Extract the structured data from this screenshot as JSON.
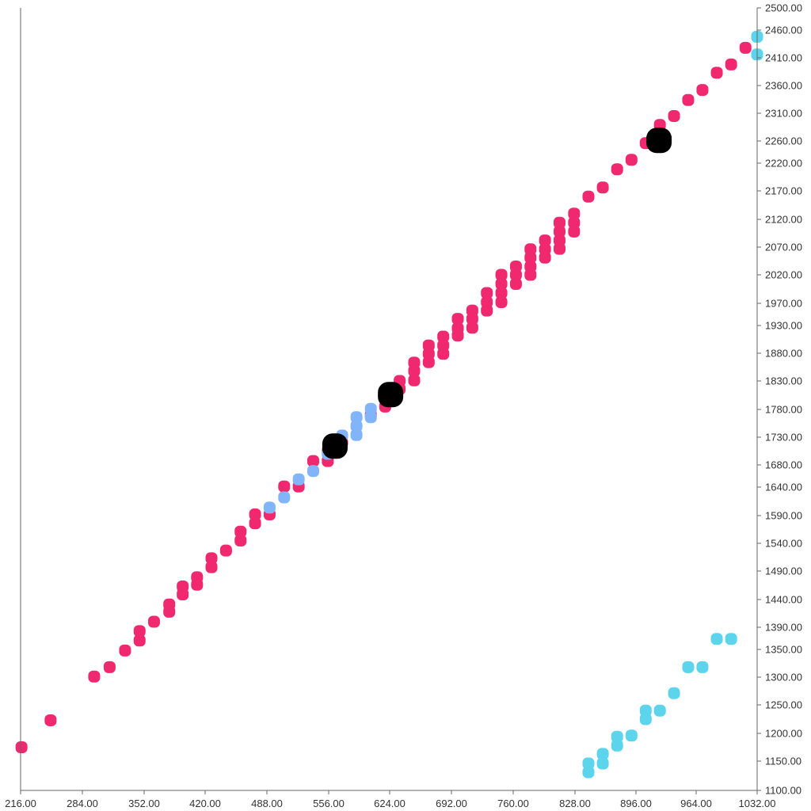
{
  "chart_data": {
    "type": "scatter",
    "title": "",
    "xlabel": "",
    "ylabel": "",
    "xlim": [
      216,
      1032
    ],
    "ylim": [
      1100,
      2500
    ],
    "x_ticks": [
      "216.00",
      "284.00",
      "352.00",
      "420.00",
      "488.00",
      "556.00",
      "624.00",
      "692.00",
      "760.00",
      "828.00",
      "896.00",
      "964.00",
      "1032.00"
    ],
    "y_ticks": [
      "2500.00",
      "2460.00",
      "2410.00",
      "2360.00",
      "2310.00",
      "2260.00",
      "2220.00",
      "2170.00",
      "2120.00",
      "2070.00",
      "2020.00",
      "1970.00",
      "1930.00",
      "1880.00",
      "1830.00",
      "1780.00",
      "1730.00",
      "1680.00",
      "1640.00",
      "1590.00",
      "1540.00",
      "1490.00",
      "1440.00",
      "1390.00",
      "1350.00",
      "1300.00",
      "1250.00",
      "1200.00",
      "1150.00",
      "1100.00"
    ],
    "y_axis_side": "right",
    "grid": false,
    "legend": "none",
    "series": [
      {
        "color": "#f0286e",
        "points": [
          [
            217,
            1175
          ],
          [
            249,
            1223
          ],
          [
            297,
            1301
          ],
          [
            314,
            1318
          ],
          [
            331,
            1348
          ],
          [
            347,
            1366
          ],
          [
            347,
            1383
          ],
          [
            363,
            1400
          ],
          [
            380,
            1418
          ],
          [
            380,
            1431
          ],
          [
            395,
            1449
          ],
          [
            395,
            1463
          ],
          [
            411,
            1466
          ],
          [
            411,
            1479
          ],
          [
            427,
            1497
          ],
          [
            427,
            1513
          ],
          [
            443,
            1527
          ],
          [
            459,
            1545
          ],
          [
            459,
            1561
          ],
          [
            475,
            1576
          ],
          [
            475,
            1592
          ],
          [
            491,
            1592
          ],
          [
            507,
            1641
          ],
          [
            523,
            1641
          ],
          [
            539,
            1687
          ],
          [
            555,
            1687
          ],
          [
            555,
            1705
          ],
          [
            571,
            1720
          ],
          [
            603,
            1770
          ],
          [
            619,
            1785
          ],
          [
            635,
            1816
          ],
          [
            635,
            1830
          ],
          [
            651,
            1831
          ],
          [
            651,
            1848
          ],
          [
            651,
            1863
          ],
          [
            667,
            1864
          ],
          [
            667,
            1879
          ],
          [
            667,
            1894
          ],
          [
            683,
            1879
          ],
          [
            683,
            1894
          ],
          [
            683,
            1910
          ],
          [
            699,
            1912
          ],
          [
            699,
            1925
          ],
          [
            699,
            1942
          ],
          [
            715,
            1926
          ],
          [
            715,
            1942
          ],
          [
            715,
            1957
          ],
          [
            731,
            1957
          ],
          [
            731,
            1972
          ],
          [
            731,
            1988
          ],
          [
            747,
            1972
          ],
          [
            747,
            1988
          ],
          [
            747,
            2004
          ],
          [
            747,
            2020
          ],
          [
            763,
            2004
          ],
          [
            763,
            2020
          ],
          [
            763,
            2035
          ],
          [
            779,
            2020
          ],
          [
            779,
            2035
          ],
          [
            779,
            2051
          ],
          [
            779,
            2066
          ],
          [
            795,
            2051
          ],
          [
            795,
            2066
          ],
          [
            795,
            2082
          ],
          [
            811,
            2067
          ],
          [
            811,
            2082
          ],
          [
            811,
            2098
          ],
          [
            811,
            2114
          ],
          [
            827,
            2098
          ],
          [
            827,
            2114
          ],
          [
            827,
            2130
          ],
          [
            843,
            2160
          ],
          [
            859,
            2176
          ],
          [
            875,
            2209
          ],
          [
            891,
            2226
          ],
          [
            907,
            2256
          ],
          [
            923,
            2289
          ],
          [
            939,
            2305
          ],
          [
            955,
            2334
          ],
          [
            971,
            2352
          ],
          [
            987,
            2383
          ],
          [
            1003,
            2398
          ],
          [
            1019,
            2428
          ]
        ]
      },
      {
        "color": "#82b4fa",
        "points": [
          [
            491,
            1604
          ],
          [
            507,
            1622
          ],
          [
            523,
            1654
          ],
          [
            539,
            1669
          ],
          [
            555,
            1700
          ],
          [
            571,
            1733
          ],
          [
            587,
            1734
          ],
          [
            587,
            1750
          ],
          [
            587,
            1766
          ],
          [
            603,
            1766
          ],
          [
            603,
            1781
          ]
        ]
      },
      {
        "color": "#5cd5ec",
        "points": [
          [
            843,
            1131
          ],
          [
            843,
            1146
          ],
          [
            859,
            1146
          ],
          [
            859,
            1163
          ],
          [
            875,
            1178
          ],
          [
            875,
            1194
          ],
          [
            891,
            1196
          ],
          [
            907,
            1225
          ],
          [
            907,
            1240
          ],
          [
            923,
            1240
          ],
          [
            939,
            1271
          ],
          [
            955,
            1318
          ],
          [
            971,
            1318
          ],
          [
            987,
            1369
          ],
          [
            1003,
            1369
          ],
          [
            1032,
            2416
          ],
          [
            1032,
            2448
          ]
        ]
      },
      {
        "color": "#000000",
        "large": true,
        "points": [
          [
            563,
            1714
          ],
          [
            625,
            1806
          ],
          [
            922,
            2261
          ]
        ]
      }
    ]
  }
}
